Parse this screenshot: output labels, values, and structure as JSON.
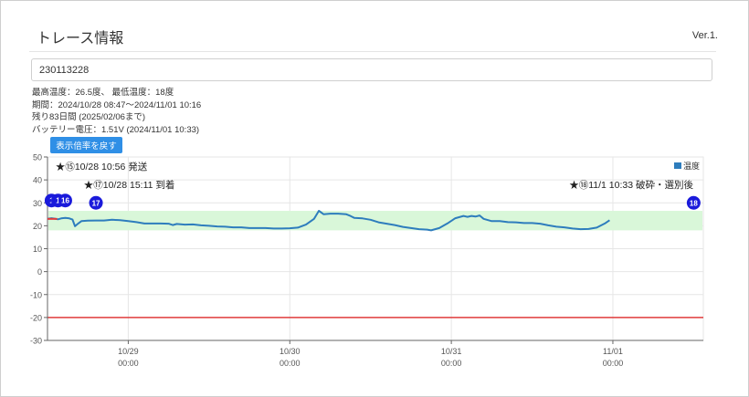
{
  "header": {
    "title": "トレース情報",
    "version": "Ver.1."
  },
  "search": {
    "value": "230113228"
  },
  "info": {
    "temperature": "最高温度：26.5度、 最低温度：18度",
    "period": "期間：2024/10/28 08:47～2024/11/01 10:16",
    "remaining": "残り83日間 (2025/02/06まで)",
    "battery": "バッテリー電圧：1.51V (2024/11/01 10:33)"
  },
  "reset_button": "表示倍率を戻す",
  "chart_data": {
    "type": "line",
    "series": [
      {
        "name": "温度",
        "color": "#2e7dbd",
        "points": [
          [
            0.0,
            23.0
          ],
          [
            0.05,
            23.3
          ],
          [
            0.1,
            23.0
          ],
          [
            0.13,
            22.8
          ],
          [
            0.17,
            23.2
          ],
          [
            0.22,
            23.4
          ],
          [
            0.27,
            23.2
          ],
          [
            0.31,
            22.7
          ],
          [
            0.34,
            19.8
          ],
          [
            0.38,
            21.0
          ],
          [
            0.42,
            22.0
          ],
          [
            0.5,
            22.2
          ],
          [
            0.6,
            22.3
          ],
          [
            0.7,
            22.3
          ],
          [
            0.8,
            22.6
          ],
          [
            0.9,
            22.4
          ],
          [
            1.0,
            22.0
          ],
          [
            1.1,
            21.6
          ],
          [
            1.2,
            21.0
          ],
          [
            1.3,
            21.0
          ],
          [
            1.4,
            21.0
          ],
          [
            1.5,
            20.9
          ],
          [
            1.55,
            20.3
          ],
          [
            1.6,
            20.8
          ],
          [
            1.7,
            20.5
          ],
          [
            1.8,
            20.6
          ],
          [
            1.9,
            20.2
          ],
          [
            2.0,
            20.0
          ],
          [
            2.1,
            19.7
          ],
          [
            2.2,
            19.6
          ],
          [
            2.3,
            19.3
          ],
          [
            2.4,
            19.3
          ],
          [
            2.5,
            19.0
          ],
          [
            2.6,
            19.0
          ],
          [
            2.7,
            19.0
          ],
          [
            2.8,
            18.8
          ],
          [
            2.9,
            18.8
          ],
          [
            3.0,
            18.9
          ],
          [
            3.1,
            19.2
          ],
          [
            3.2,
            20.5
          ],
          [
            3.3,
            23.0
          ],
          [
            3.36,
            26.5
          ],
          [
            3.42,
            25.0
          ],
          [
            3.5,
            25.3
          ],
          [
            3.6,
            25.3
          ],
          [
            3.7,
            25.0
          ],
          [
            3.75,
            24.3
          ],
          [
            3.8,
            23.4
          ],
          [
            3.9,
            23.2
          ],
          [
            4.0,
            22.6
          ],
          [
            4.1,
            21.5
          ],
          [
            4.2,
            20.9
          ],
          [
            4.3,
            20.3
          ],
          [
            4.4,
            19.5
          ],
          [
            4.5,
            19.0
          ],
          [
            4.6,
            18.5
          ],
          [
            4.7,
            18.3
          ],
          [
            4.75,
            18.0
          ],
          [
            4.85,
            19.0
          ],
          [
            4.95,
            21.0
          ],
          [
            5.05,
            23.3
          ],
          [
            5.15,
            24.3
          ],
          [
            5.2,
            23.9
          ],
          [
            5.25,
            24.3
          ],
          [
            5.3,
            24.0
          ],
          [
            5.35,
            24.5
          ],
          [
            5.4,
            23.0
          ],
          [
            5.5,
            22.0
          ],
          [
            5.6,
            22.0
          ],
          [
            5.7,
            21.6
          ],
          [
            5.8,
            21.5
          ],
          [
            5.9,
            21.2
          ],
          [
            6.0,
            21.2
          ],
          [
            6.1,
            20.9
          ],
          [
            6.2,
            20.2
          ],
          [
            6.3,
            19.6
          ],
          [
            6.4,
            19.3
          ],
          [
            6.5,
            18.8
          ],
          [
            6.6,
            18.5
          ],
          [
            6.7,
            18.6
          ],
          [
            6.8,
            19.2
          ],
          [
            6.9,
            21.0
          ],
          [
            6.96,
            22.4
          ]
        ]
      }
    ],
    "x_ticks": [
      {
        "pos": 1,
        "line1": "10/29",
        "line2": "00:00"
      },
      {
        "pos": 3,
        "line1": "10/30",
        "line2": "00:00"
      },
      {
        "pos": 5,
        "line1": "10/31",
        "line2": "00:00"
      },
      {
        "pos": 7,
        "line1": "11/01",
        "line2": "00:00"
      }
    ],
    "y_ticks": [
      50,
      40,
      30,
      20,
      10,
      0,
      -10,
      -20,
      -30
    ],
    "ylim": [
      -30,
      50
    ],
    "band": [
      18,
      26.5
    ],
    "threshold": -20,
    "red_segment": [
      [
        0.0,
        23.0
      ],
      [
        0.12,
        23.0
      ]
    ],
    "markers": [
      {
        "label": "1",
        "x": 0.05,
        "y": 31
      },
      {
        "label": "1",
        "x": 0.13,
        "y": 31
      },
      {
        "label": "16",
        "x": 0.22,
        "y": 31
      },
      {
        "label": "17",
        "x": 0.6,
        "y": 30
      },
      {
        "label": "18",
        "x": 8.0,
        "y": 30
      }
    ],
    "annotations": [
      {
        "text": "★⑮10/28 10:56 発送",
        "x": 0.1,
        "y": 44.5
      },
      {
        "text": "★⑰10/28 15:11 到着",
        "x": 0.45,
        "y": 36.5
      },
      {
        "text": "★⑱11/1 10:33 破砕・選別後",
        "x": 6.46,
        "y": 36.5
      }
    ],
    "legend": {
      "label": "温度",
      "color": "#2e7dbd",
      "position": "top-right"
    },
    "colors": {
      "band": "#d9f7d9",
      "threshold": "#e03c3c",
      "grid": "#e6e6e6",
      "axis": "#666666",
      "marker": "#1a1adb",
      "red": "#e03c3c"
    }
  }
}
